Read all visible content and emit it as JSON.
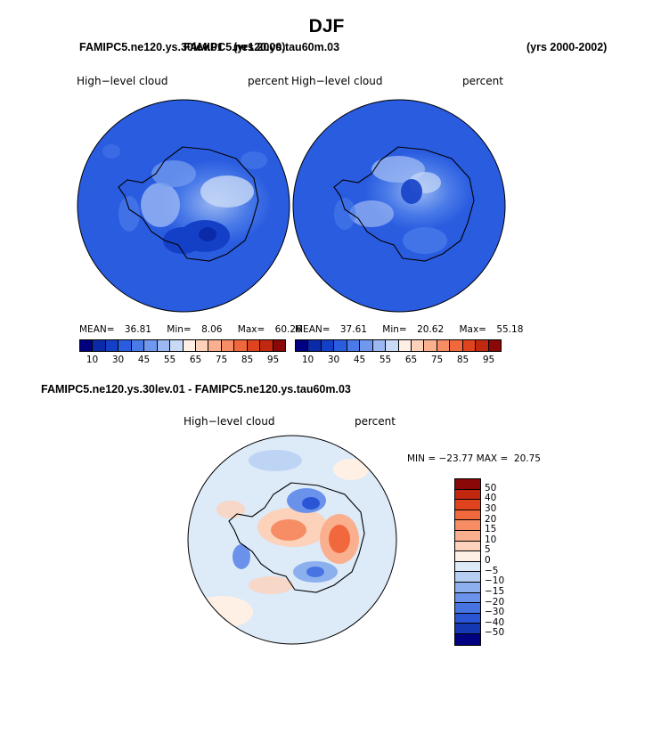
{
  "title": "DJF",
  "header": {
    "left_title": "FAMIPC5.ne120.ys.30lev.01",
    "overlap_title": "FAMIPC5.ne120.ys.tau60m.03",
    "years_left": "(yrs 2000)",
    "years_right": "(yrs 2000-2002)"
  },
  "panels": [
    {
      "field": "High−level cloud",
      "units": "percent",
      "stats": {
        "mean_label": "MEAN=",
        "mean": "36.81",
        "min_label": "Min=",
        "min": "8.06",
        "max_label": "Max=",
        "max": "60.26"
      }
    },
    {
      "field": "High−level cloud",
      "units": "percent",
      "stats": {
        "mean_label": "MEAN=",
        "mean": "37.61",
        "min_label": "Min=",
        "min": "20.62",
        "max_label": "Max=",
        "max": "55.18"
      }
    }
  ],
  "colorbar_abs": {
    "colors": [
      "#000080",
      "#0a2aa8",
      "#1440c8",
      "#2a5ce0",
      "#4a7ae8",
      "#6f98ee",
      "#9bb8f2",
      "#c8daf6",
      "#fff0e6",
      "#fcd2bb",
      "#fab08f",
      "#f68d65",
      "#f0683c",
      "#e0441e",
      "#c22810",
      "#8a0808"
    ],
    "tick_labels": [
      "10",
      "30",
      "45",
      "55",
      "65",
      "75",
      "85",
      "95"
    ]
  },
  "diff": {
    "title": "FAMIPC5.ne120.ys.30lev.01 - FAMIPC5.ne120.ys.tau60m.03",
    "field": "High−level cloud",
    "units": "percent",
    "minmax_text": "MIN = −23.77 MAX =  20.75",
    "colorbar": {
      "colors": [
        "#8a0808",
        "#c22810",
        "#e0441e",
        "#f0683c",
        "#f68d65",
        "#fab08f",
        "#fcd2bb",
        "#fff0e6",
        "#ddeaf8",
        "#b5cef2",
        "#8cb0ee",
        "#6a92ea",
        "#4674e2",
        "#2a56d6",
        "#1438b2",
        "#000080"
      ],
      "tick_labels": [
        "50",
        "40",
        "30",
        "20",
        "15",
        "10",
        "5",
        "0",
        "−5",
        "−10",
        "−15",
        "−20",
        "−30",
        "−40",
        "−50"
      ]
    }
  }
}
